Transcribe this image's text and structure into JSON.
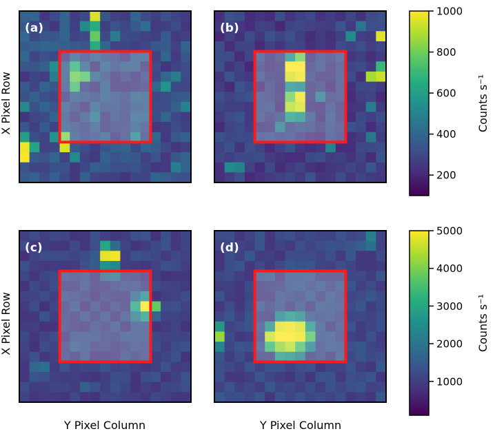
{
  "chart_data": {
    "type": "heatmap",
    "grid_size": [
      17,
      17
    ],
    "x_axis_label": "Y Pixel Column",
    "y_axis_label": "X Pixel Row",
    "aperture": {
      "row_start": 4,
      "row_end": 13,
      "col_start": 4,
      "col_end": 13,
      "color": "#ff1a1a"
    },
    "colorbars": [
      {
        "label": "Counts s⁻¹",
        "min": 100,
        "max": 1000,
        "ticks": [
          1000,
          800,
          600,
          400,
          200
        ]
      },
      {
        "label": "Counts s⁻¹",
        "min": 100,
        "max": 5000,
        "ticks": [
          5000,
          4000,
          3000,
          2000,
          1000
        ]
      }
    ],
    "panels": [
      {
        "label": "(a)",
        "colorbar": 0,
        "background": 330,
        "hotspots": [
          {
            "r": 0,
            "c": 7,
            "v": 950
          },
          {
            "r": 1,
            "c": 7,
            "v": 650
          },
          {
            "r": 2,
            "c": 7,
            "v": 780
          },
          {
            "r": 3,
            "c": 7,
            "v": 650
          },
          {
            "r": 1,
            "c": 6,
            "v": 520
          },
          {
            "r": 2,
            "c": 9,
            "v": 480
          },
          {
            "r": 1,
            "c": 12,
            "v": 420
          },
          {
            "r": 5,
            "c": 3,
            "v": 550
          },
          {
            "r": 6,
            "c": 3,
            "v": 480
          },
          {
            "r": 5,
            "c": 5,
            "v": 680
          },
          {
            "r": 6,
            "c": 5,
            "v": 800
          },
          {
            "r": 6,
            "c": 6,
            "v": 760
          },
          {
            "r": 7,
            "c": 5,
            "v": 720
          },
          {
            "r": 7,
            "c": 14,
            "v": 560
          },
          {
            "r": 6,
            "c": 15,
            "v": 470
          },
          {
            "r": 9,
            "c": 0,
            "v": 520
          },
          {
            "r": 9,
            "c": 16,
            "v": 500
          },
          {
            "r": 12,
            "c": 3,
            "v": 560
          },
          {
            "r": 12,
            "c": 4,
            "v": 820
          },
          {
            "r": 13,
            "c": 4,
            "v": 950
          },
          {
            "r": 12,
            "c": 0,
            "v": 600
          },
          {
            "r": 13,
            "c": 0,
            "v": 980
          },
          {
            "r": 14,
            "c": 0,
            "v": 990
          },
          {
            "r": 13,
            "c": 1,
            "v": 620
          },
          {
            "r": 14,
            "c": 5,
            "v": 520
          },
          {
            "r": 12,
            "c": 11,
            "v": 520
          },
          {
            "r": 15,
            "c": 15,
            "v": 480
          },
          {
            "r": 10,
            "c": 7,
            "v": 460
          }
        ]
      },
      {
        "label": "(b)",
        "colorbar": 0,
        "background": 280,
        "hotspots": [
          {
            "r": 4,
            "c": 7,
            "v": 560
          },
          {
            "r": 4,
            "c": 8,
            "v": 800
          },
          {
            "r": 5,
            "c": 7,
            "v": 1000
          },
          {
            "r": 5,
            "c": 8,
            "v": 1000
          },
          {
            "r": 6,
            "c": 7,
            "v": 950
          },
          {
            "r": 6,
            "c": 8,
            "v": 980
          },
          {
            "r": 7,
            "c": 7,
            "v": 560
          },
          {
            "r": 7,
            "c": 8,
            "v": 520
          },
          {
            "r": 8,
            "c": 7,
            "v": 800
          },
          {
            "r": 8,
            "c": 8,
            "v": 980
          },
          {
            "r": 9,
            "c": 7,
            "v": 900
          },
          {
            "r": 9,
            "c": 8,
            "v": 950
          },
          {
            "r": 10,
            "c": 7,
            "v": 600
          },
          {
            "r": 10,
            "c": 8,
            "v": 560
          },
          {
            "r": 2,
            "c": 16,
            "v": 960
          },
          {
            "r": 5,
            "c": 16,
            "v": 700
          },
          {
            "r": 6,
            "c": 15,
            "v": 880
          },
          {
            "r": 6,
            "c": 16,
            "v": 930
          },
          {
            "r": 2,
            "c": 13,
            "v": 520
          },
          {
            "r": 1,
            "c": 14,
            "v": 450
          },
          {
            "r": 8,
            "c": 10,
            "v": 470
          },
          {
            "r": 11,
            "c": 6,
            "v": 480
          },
          {
            "r": 13,
            "c": 11,
            "v": 500
          },
          {
            "r": 15,
            "c": 1,
            "v": 520
          },
          {
            "r": 15,
            "c": 2,
            "v": 500
          },
          {
            "r": 9,
            "c": 15,
            "v": 470
          },
          {
            "r": 12,
            "c": 15,
            "v": 460
          }
        ]
      },
      {
        "label": "(c)",
        "colorbar": 1,
        "background": 1100,
        "hotspots": [
          {
            "r": 1,
            "c": 8,
            "v": 3000
          },
          {
            "r": 2,
            "c": 8,
            "v": 4800
          },
          {
            "r": 2,
            "c": 9,
            "v": 4900
          },
          {
            "r": 1,
            "c": 9,
            "v": 1800
          },
          {
            "r": 3,
            "c": 8,
            "v": 2600
          },
          {
            "r": 3,
            "c": 9,
            "v": 2400
          },
          {
            "r": 4,
            "c": 8,
            "v": 1700
          },
          {
            "r": 4,
            "c": 9,
            "v": 1900
          },
          {
            "r": 3,
            "c": 7,
            "v": 1500
          },
          {
            "r": 2,
            "c": 7,
            "v": 1500
          },
          {
            "r": 6,
            "c": 11,
            "v": 1800
          },
          {
            "r": 6,
            "c": 12,
            "v": 2500
          },
          {
            "r": 7,
            "c": 11,
            "v": 3000
          },
          {
            "r": 7,
            "c": 12,
            "v": 5000
          },
          {
            "r": 7,
            "c": 13,
            "v": 3800
          },
          {
            "r": 8,
            "c": 11,
            "v": 2100
          },
          {
            "r": 8,
            "c": 12,
            "v": 2800
          },
          {
            "r": 8,
            "c": 13,
            "v": 1700
          },
          {
            "r": 11,
            "c": 5,
            "v": 1500
          },
          {
            "r": 13,
            "c": 1,
            "v": 1700
          },
          {
            "r": 13,
            "c": 2,
            "v": 1900
          },
          {
            "r": 14,
            "c": 1,
            "v": 1400
          },
          {
            "r": 15,
            "c": 6,
            "v": 1600
          }
        ]
      },
      {
        "label": "(d)",
        "colorbar": 1,
        "background": 1200,
        "hotspots": [
          {
            "r": 0,
            "c": 15,
            "v": 2200
          },
          {
            "r": 1,
            "c": 14,
            "v": 1600
          },
          {
            "r": 1,
            "c": 15,
            "v": 1900
          },
          {
            "r": 8,
            "c": 6,
            "v": 2300
          },
          {
            "r": 8,
            "c": 7,
            "v": 2700
          },
          {
            "r": 8,
            "c": 8,
            "v": 2400
          },
          {
            "r": 9,
            "c": 5,
            "v": 2600
          },
          {
            "r": 9,
            "c": 6,
            "v": 4800
          },
          {
            "r": 9,
            "c": 7,
            "v": 4900
          },
          {
            "r": 9,
            "c": 8,
            "v": 4700
          },
          {
            "r": 9,
            "c": 9,
            "v": 2700
          },
          {
            "r": 10,
            "c": 5,
            "v": 4600
          },
          {
            "r": 10,
            "c": 6,
            "v": 5000
          },
          {
            "r": 10,
            "c": 7,
            "v": 5000
          },
          {
            "r": 10,
            "c": 8,
            "v": 4900
          },
          {
            "r": 10,
            "c": 9,
            "v": 3700
          },
          {
            "r": 11,
            "c": 5,
            "v": 3400
          },
          {
            "r": 11,
            "c": 6,
            "v": 4200
          },
          {
            "r": 11,
            "c": 7,
            "v": 4500
          },
          {
            "r": 11,
            "c": 8,
            "v": 3600
          },
          {
            "r": 11,
            "c": 9,
            "v": 2300
          },
          {
            "r": 12,
            "c": 6,
            "v": 2800
          },
          {
            "r": 12,
            "c": 7,
            "v": 2600
          },
          {
            "r": 12,
            "c": 8,
            "v": 2200
          },
          {
            "r": 9,
            "c": 0,
            "v": 2700
          },
          {
            "r": 10,
            "c": 0,
            "v": 4200
          },
          {
            "r": 11,
            "c": 0,
            "v": 2300
          }
        ]
      }
    ]
  }
}
